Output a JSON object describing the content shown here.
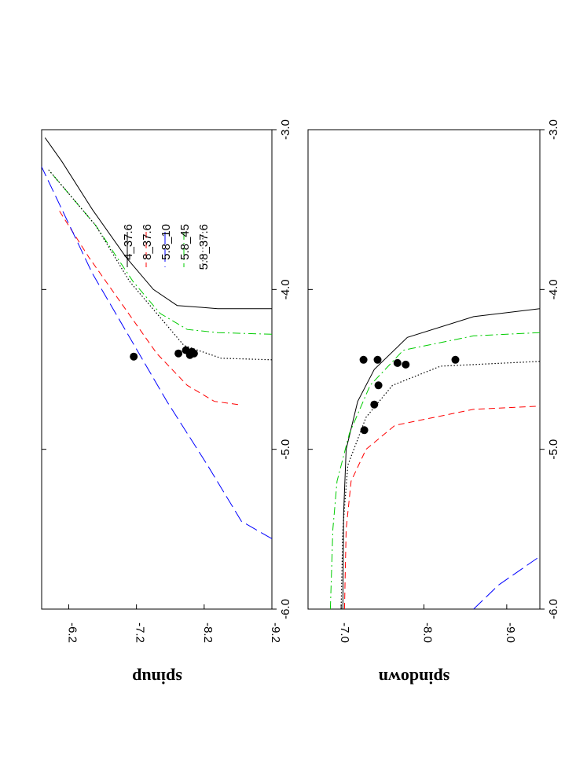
{
  "chart_data": [
    {
      "type": "line",
      "panel": "spinup",
      "ylabel": "spinup",
      "xlim": [
        -6.0,
        -3.0
      ],
      "x_ticks": [
        "-6.0",
        "-5.0",
        "-4.0",
        "-3.0"
      ],
      "ylim": [
        -9.2,
        -5.8
      ],
      "y_ticks": [
        "-6.2",
        "-7.2",
        "-8.2",
        "-9.2"
      ],
      "series": [
        {
          "name": "4_37.6",
          "color": "#000000",
          "style": "solid",
          "points": [
            [
              -4.12,
              -9.2
            ],
            [
              -4.12,
              -8.4
            ],
            [
              -4.1,
              -7.8
            ],
            [
              -4.0,
              -7.45
            ],
            [
              -3.8,
              -7.05
            ],
            [
              -3.5,
              -6.55
            ],
            [
              -3.2,
              -6.1
            ],
            [
              -3.05,
              -5.85
            ]
          ]
        },
        {
          "name": "8_37.6",
          "color": "#ff0000",
          "style": "dashed",
          "points": [
            [
              -4.72,
              -8.7
            ],
            [
              -4.7,
              -8.35
            ],
            [
              -4.6,
              -7.95
            ],
            [
              -4.4,
              -7.5
            ],
            [
              -4.1,
              -7.0
            ],
            [
              -3.8,
              -6.5
            ],
            [
              -3.5,
              -6.05
            ]
          ]
        },
        {
          "name": "5.8_10",
          "color": "#0000ff",
          "style": "long-dash",
          "points": [
            [
              -5.56,
              -9.2
            ],
            [
              -5.45,
              -8.75
            ],
            [
              -5.1,
              -8.25
            ],
            [
              -4.7,
              -7.65
            ],
            [
              -4.3,
              -7.1
            ],
            [
              -3.9,
              -6.55
            ],
            [
              -3.5,
              -6.1
            ],
            [
              -3.1,
              -5.65
            ]
          ]
        },
        {
          "name": "5.8_45",
          "color": "#00cc00",
          "style": "dash-dot",
          "points": [
            [
              -4.28,
              -9.2
            ],
            [
              -4.27,
              -8.4
            ],
            [
              -4.25,
              -7.95
            ],
            [
              -4.15,
              -7.55
            ],
            [
              -3.95,
              -7.15
            ],
            [
              -3.6,
              -6.6
            ],
            [
              -3.25,
              -5.9
            ]
          ]
        },
        {
          "name": "5.8_37.6",
          "color": "#000000",
          "style": "dotted",
          "points": [
            [
              -4.44,
              -9.2
            ],
            [
              -4.43,
              -8.45
            ],
            [
              -4.35,
              -7.9
            ],
            [
              -4.15,
              -7.5
            ],
            [
              -3.95,
              -7.1
            ],
            [
              -3.6,
              -6.6
            ],
            [
              -3.25,
              -5.9
            ]
          ]
        }
      ],
      "markers": [
        [
          -4.42,
          -7.16
        ],
        [
          -4.4,
          -7.82
        ],
        [
          -4.38,
          -7.93
        ],
        [
          -4.39,
          -8.02
        ],
        [
          -4.41,
          -7.99
        ],
        [
          -4.4,
          -8.05
        ]
      ],
      "legend_position": "top-right"
    },
    {
      "type": "line",
      "panel": "spindown",
      "ylabel": "spindown",
      "xlim": [
        -6.0,
        -3.0
      ],
      "x_ticks": [
        "-6.0",
        "-5.0",
        "-4.0",
        "-3.0"
      ],
      "ylim": [
        -9.4,
        -6.6
      ],
      "y_ticks": [
        "-9.0",
        "-8.0",
        "-7.0"
      ],
      "series": [
        {
          "name": "4_37.6",
          "color": "#000000",
          "style": "solid",
          "points": [
            [
              -6.0,
              -7.02
            ],
            [
              -5.4,
              -7.03
            ],
            [
              -5.0,
              -7.06
            ],
            [
              -4.7,
              -7.2
            ],
            [
              -4.5,
              -7.4
            ],
            [
              -4.3,
              -7.8
            ],
            [
              -4.17,
              -8.6
            ],
            [
              -4.12,
              -9.4
            ]
          ]
        },
        {
          "name": "8_37.6",
          "color": "#ff0000",
          "style": "dashed",
          "points": [
            [
              -6.0,
              -7.04
            ],
            [
              -5.5,
              -7.06
            ],
            [
              -5.2,
              -7.12
            ],
            [
              -5.0,
              -7.3
            ],
            [
              -4.85,
              -7.65
            ],
            [
              -4.75,
              -8.6
            ],
            [
              -4.73,
              -9.4
            ]
          ]
        },
        {
          "name": "5.8_10",
          "color": "#0000ff",
          "style": "long-dash",
          "points": [
            [
              -6.0,
              -8.6
            ],
            [
              -5.85,
              -8.9
            ],
            [
              -5.67,
              -9.4
            ]
          ]
        },
        {
          "name": "5.8_45",
          "color": "#00cc00",
          "style": "dash-dot",
          "points": [
            [
              -6.0,
              -6.87
            ],
            [
              -5.5,
              -6.9
            ],
            [
              -5.2,
              -6.95
            ],
            [
              -4.9,
              -7.1
            ],
            [
              -4.6,
              -7.35
            ],
            [
              -4.38,
              -7.75
            ],
            [
              -4.29,
              -8.6
            ],
            [
              -4.27,
              -9.4
            ]
          ]
        },
        {
          "name": "5.8_37.6",
          "color": "#000000",
          "style": "dotted",
          "points": [
            [
              -6.0,
              -7.0
            ],
            [
              -5.5,
              -7.02
            ],
            [
              -5.1,
              -7.08
            ],
            [
              -4.8,
              -7.3
            ],
            [
              -4.6,
              -7.62
            ],
            [
              -4.48,
              -8.2
            ],
            [
              -4.45,
              -9.4
            ]
          ]
        }
      ],
      "markers": [
        [
          -4.44,
          -8.38
        ],
        [
          -4.47,
          -7.78
        ],
        [
          -4.46,
          -7.68
        ],
        [
          -4.44,
          -7.44
        ],
        [
          -4.44,
          -7.27
        ],
        [
          -4.6,
          -7.45
        ],
        [
          -4.72,
          -7.4
        ],
        [
          -4.88,
          -7.28
        ]
      ]
    }
  ]
}
